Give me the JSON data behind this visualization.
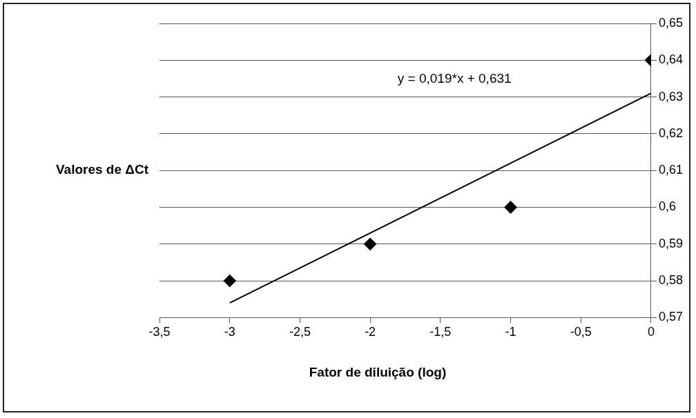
{
  "chart_data": {
    "type": "scatter",
    "xlabel": "Fator de diluição (log)",
    "ylabel": "Valores de ΔCt",
    "series": [
      {
        "color": "#000000",
        "x": [
          -3,
          -2,
          -1,
          0
        ],
        "values": [
          0.58,
          0.59,
          0.6,
          0.64
        ],
        "marker": "diamond"
      },
      {
        "type": "line",
        "color": "#000000",
        "x": [
          -3,
          0
        ],
        "values": [
          0.574,
          0.631
        ],
        "marker": "none",
        "line_style": "solid"
      }
    ],
    "xlim": [
      -3.5,
      0
    ],
    "xticks": [
      {
        "value": -3.5,
        "label": "-3,5"
      },
      -3,
      {
        "value": -2.5,
        "label": "-2,5"
      },
      -2,
      {
        "value": -1.5,
        "label": "-1,5"
      },
      -1,
      {
        "value": -0.5,
        "label": "-0,5"
      },
      0
    ],
    "ylim": [
      0.57,
      0.65
    ],
    "yticks": [
      {
        "value": 0.57,
        "label": "0,57"
      },
      {
        "value": 0.58,
        "label": "0,58"
      },
      {
        "value": 0.59,
        "label": "0,59"
      },
      {
        "value": 0.6,
        "label": "0,6"
      },
      {
        "value": 0.61,
        "label": "0,61"
      },
      {
        "value": 0.62,
        "label": "0,62"
      },
      {
        "value": 0.63,
        "label": "0,63"
      },
      {
        "value": 0.64,
        "label": "0,64"
      },
      {
        "value": 0.65,
        "label": "0,65"
      }
    ],
    "annotations": [
      "y = 0,019*x + 0,631"
    ],
    "grid": "y",
    "legend": false
  }
}
